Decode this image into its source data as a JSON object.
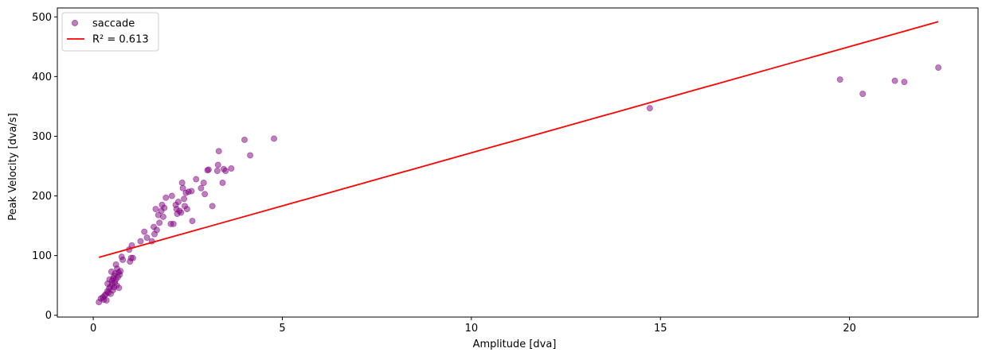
{
  "chart_data": {
    "type": "scatter",
    "title": "",
    "xlabel": "Amplitude [dva]",
    "ylabel": "Peak Velocity [dva/s]",
    "xlim": [
      -0.95,
      23.4
    ],
    "ylim": [
      -3,
      515
    ],
    "xticks": [
      0,
      5,
      10,
      15,
      20
    ],
    "yticks": [
      0,
      100,
      200,
      300,
      400,
      500
    ],
    "grid": false,
    "legend_position": "top-left",
    "series": [
      {
        "name": "saccade",
        "kind": "scatter",
        "color": "#800080",
        "opacity": 0.5,
        "points": [
          [
            0.15,
            22
          ],
          [
            0.2,
            28
          ],
          [
            0.25,
            30
          ],
          [
            0.28,
            26
          ],
          [
            0.3,
            33
          ],
          [
            0.33,
            35
          ],
          [
            0.35,
            25
          ],
          [
            0.37,
            40
          ],
          [
            0.38,
            53
          ],
          [
            0.4,
            38
          ],
          [
            0.42,
            45
          ],
          [
            0.43,
            60
          ],
          [
            0.45,
            48
          ],
          [
            0.46,
            36
          ],
          [
            0.48,
            73
          ],
          [
            0.5,
            52
          ],
          [
            0.5,
            58
          ],
          [
            0.52,
            42
          ],
          [
            0.53,
            62
          ],
          [
            0.55,
            47
          ],
          [
            0.55,
            66
          ],
          [
            0.57,
            55
          ],
          [
            0.58,
            70
          ],
          [
            0.6,
            60
          ],
          [
            0.6,
            85
          ],
          [
            0.62,
            50
          ],
          [
            0.63,
            78
          ],
          [
            0.65,
            64
          ],
          [
            0.67,
            72
          ],
          [
            0.68,
            46
          ],
          [
            0.7,
            68
          ],
          [
            0.72,
            74
          ],
          [
            0.75,
            98
          ],
          [
            0.78,
            93
          ],
          [
            0.95,
            110
          ],
          [
            0.97,
            90
          ],
          [
            1.0,
            96
          ],
          [
            1.02,
            117
          ],
          [
            1.05,
            96
          ],
          [
            1.25,
            124
          ],
          [
            1.35,
            140
          ],
          [
            1.42,
            130
          ],
          [
            1.55,
            124
          ],
          [
            1.6,
            148
          ],
          [
            1.62,
            136
          ],
          [
            1.65,
            178
          ],
          [
            1.68,
            143
          ],
          [
            1.72,
            168
          ],
          [
            1.75,
            155
          ],
          [
            1.8,
            175
          ],
          [
            1.82,
            185
          ],
          [
            1.85,
            165
          ],
          [
            1.88,
            180
          ],
          [
            1.92,
            197
          ],
          [
            2.05,
            153
          ],
          [
            2.08,
            200
          ],
          [
            2.12,
            153
          ],
          [
            2.18,
            185
          ],
          [
            2.2,
            178
          ],
          [
            2.22,
            170
          ],
          [
            2.25,
            190
          ],
          [
            2.28,
            175
          ],
          [
            2.32,
            172
          ],
          [
            2.35,
            222
          ],
          [
            2.37,
            213
          ],
          [
            2.4,
            195
          ],
          [
            2.42,
            183
          ],
          [
            2.45,
            205
          ],
          [
            2.48,
            178
          ],
          [
            2.52,
            207
          ],
          [
            2.6,
            208
          ],
          [
            2.62,
            158
          ],
          [
            2.72,
            228
          ],
          [
            2.85,
            213
          ],
          [
            2.92,
            222
          ],
          [
            2.95,
            203
          ],
          [
            3.02,
            243
          ],
          [
            3.05,
            244
          ],
          [
            3.15,
            183
          ],
          [
            3.28,
            242
          ],
          [
            3.3,
            252
          ],
          [
            3.32,
            275
          ],
          [
            3.42,
            222
          ],
          [
            3.45,
            245
          ],
          [
            3.5,
            242
          ],
          [
            3.65,
            246
          ],
          [
            4.0,
            294
          ],
          [
            4.15,
            268
          ],
          [
            4.78,
            296
          ],
          [
            14.72,
            347
          ],
          [
            19.75,
            395
          ],
          [
            20.35,
            371
          ],
          [
            21.2,
            393
          ],
          [
            21.45,
            391
          ],
          [
            22.35,
            415
          ]
        ]
      },
      {
        "name": "R² = 0.613",
        "kind": "line",
        "color": "#ff0000",
        "points": [
          [
            0.15,
            97
          ],
          [
            22.35,
            492
          ]
        ]
      }
    ]
  }
}
